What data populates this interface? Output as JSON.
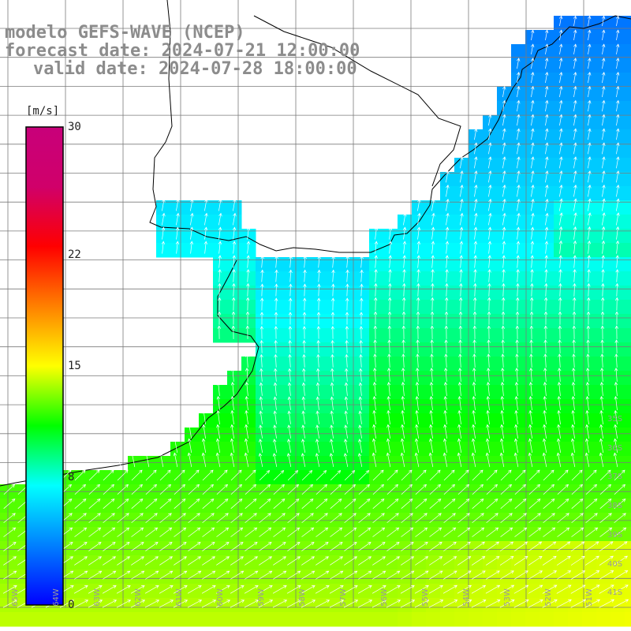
{
  "title": {
    "model": "modelo GEFS-WAVE (NCEP)",
    "forecast": "forecast date: 2024-07-21 12:00:00",
    "valid": "valid date: 2024-07-28 18:00:00"
  },
  "colorbar": {
    "unit": "[m/s]",
    "ticks": [
      {
        "label": "30",
        "value": 30
      },
      {
        "label": "22",
        "value": 22
      },
      {
        "label": "15",
        "value": 15
      },
      {
        "label": "8",
        "value": 8
      },
      {
        "label": "0",
        "value": 0
      }
    ],
    "range": [
      0,
      30
    ],
    "colors": [
      "#0000ff",
      "#0080ff",
      "#00ffff",
      "#00ff00",
      "#ffff00",
      "#ff8000",
      "#ff0000",
      "#d0006a",
      "#c8007a"
    ]
  },
  "lat_labels": [
    "35S",
    "36S",
    "37S",
    "38S",
    "39S",
    "40S",
    "41S"
  ],
  "lon_labels": [
    "65W",
    "64W",
    "63W",
    "62W",
    "61W",
    "60W",
    "59W",
    "58W",
    "57W",
    "56W",
    "55W",
    "54W",
    "53W",
    "52W",
    "51W"
  ],
  "colors": {
    "land": "#ffffff",
    "grid": "#7a7a7a",
    "coast": "#000000",
    "arrow": "#ffffff",
    "title": "#8c8c8c"
  }
}
